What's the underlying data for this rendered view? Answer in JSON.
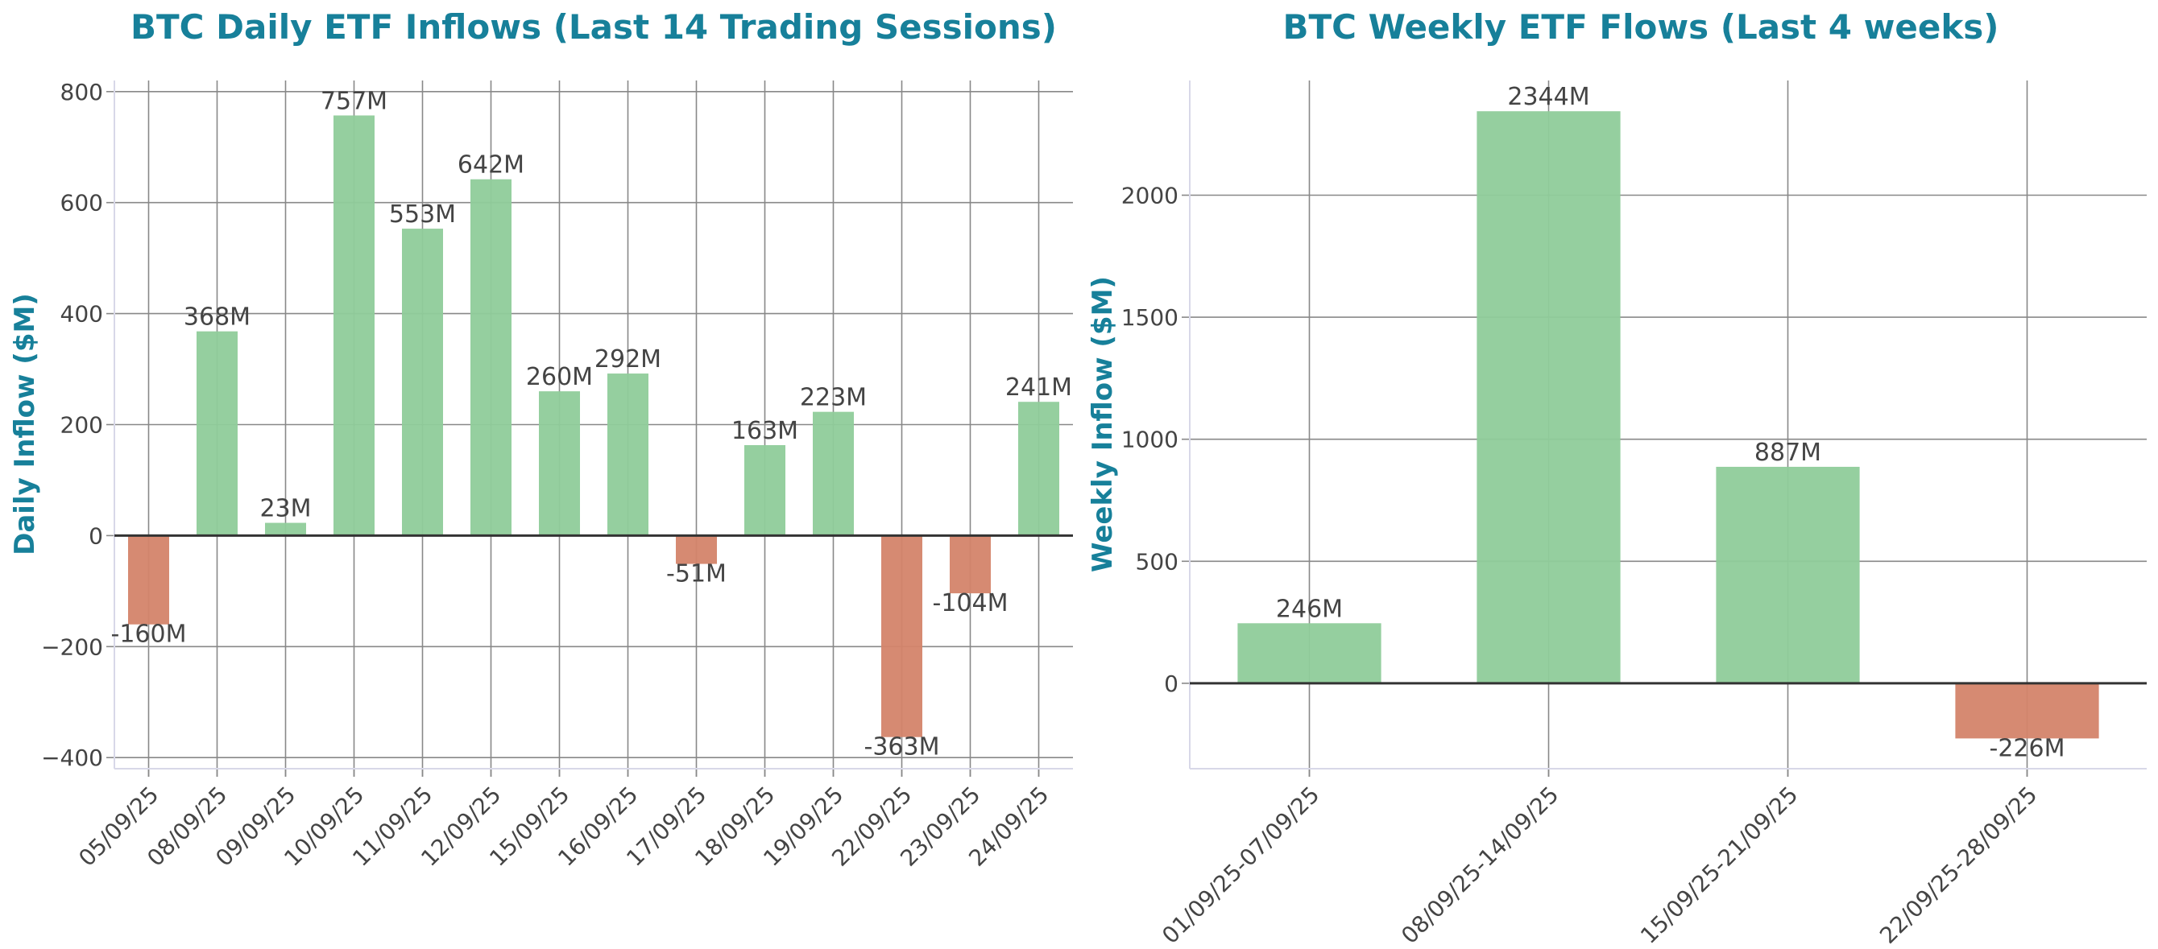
{
  "colors": {
    "positive": "#8fcc9a",
    "negative": "#d4846a",
    "title": "#17809a",
    "text": "#444444"
  },
  "chart_data": [
    {
      "type": "bar",
      "title": "BTC Daily ETF Inflows (Last 14 Trading Sessions)",
      "xlabel": "",
      "ylabel": "Daily Inflow ($M)",
      "ylim": [
        -420,
        820
      ],
      "yticks": [
        -400,
        -200,
        0,
        200,
        400,
        600,
        800
      ],
      "ytick_labels": [
        "−400",
        "−200",
        "0",
        "200",
        "400",
        "600",
        "800"
      ],
      "grid": true,
      "categories": [
        "05/09/25",
        "08/09/25",
        "09/09/25",
        "10/09/25",
        "11/09/25",
        "12/09/25",
        "15/09/25",
        "16/09/25",
        "17/09/25",
        "18/09/25",
        "19/09/25",
        "22/09/25",
        "23/09/25",
        "24/09/25"
      ],
      "values": [
        -160,
        368,
        23,
        757,
        553,
        642,
        260,
        292,
        -51,
        163,
        223,
        -363,
        -104,
        241
      ],
      "data_labels": [
        "-160M",
        "368M",
        "23M",
        "757M",
        "553M",
        "642M",
        "260M",
        "292M",
        "-51M",
        "163M",
        "223M",
        "-363M",
        "-104M",
        "241M"
      ]
    },
    {
      "type": "bar",
      "title": "BTC Weekly ETF Flows (Last 4 weeks)",
      "xlabel": "",
      "ylabel": "Weekly Inflow ($M)",
      "ylim": [
        -350,
        2470
      ],
      "yticks": [
        0,
        500,
        1000,
        1500,
        2000
      ],
      "ytick_labels": [
        "0",
        "500",
        "1000",
        "1500",
        "2000"
      ],
      "grid": true,
      "categories": [
        "01/09/25-07/09/25",
        "08/09/25-14/09/25",
        "15/09/25-21/09/25",
        "22/09/25-28/09/25"
      ],
      "values": [
        246,
        2344,
        887,
        -226
      ],
      "data_labels": [
        "246M",
        "2344M",
        "887M",
        "-226M"
      ]
    }
  ]
}
